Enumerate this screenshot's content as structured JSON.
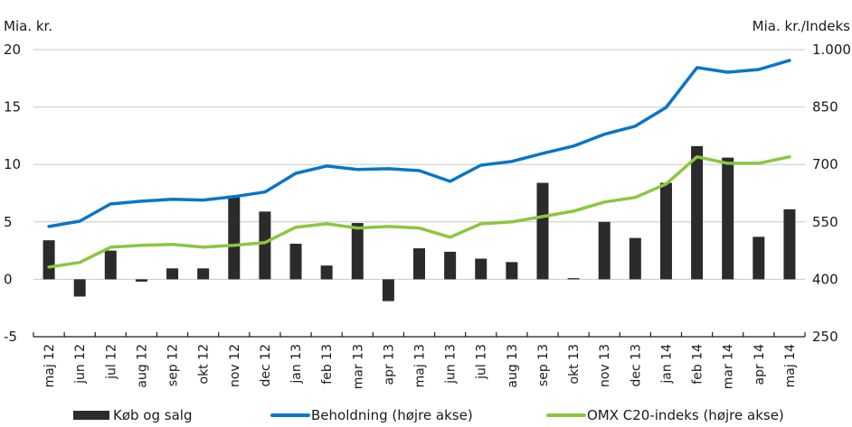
{
  "chart_data": {
    "type": "bar+line",
    "left_axis_title": "Mia. kr.",
    "right_axis_title": "Mia. kr./Indeks",
    "left_ylim": [
      -5,
      20
    ],
    "left_ticks": [
      "20",
      "15",
      "10",
      "5",
      "0",
      "-5"
    ],
    "left_tick_values": [
      20,
      15,
      10,
      5,
      0,
      -5
    ],
    "right_ylim": [
      250,
      1000
    ],
    "right_ticks": [
      "1.000",
      "850",
      "700",
      "550",
      "400",
      "250"
    ],
    "right_tick_values": [
      1000,
      850,
      700,
      550,
      400,
      250
    ],
    "grid": true,
    "legend_position": "bottom",
    "categories": [
      "maj 12",
      "jun 12",
      "jul 12",
      "aug 12",
      "sep 12",
      "okt 12",
      "nov 12",
      "dec 12",
      "jan 13",
      "feb 13",
      "mar 13",
      "apr 13",
      "maj 13",
      "jun 13",
      "jul 13",
      "aug 13",
      "sep 13",
      "okt 13",
      "nov 13",
      "dec 13",
      "jan 14",
      "feb 14",
      "mar 14",
      "apr 14",
      "maj 14"
    ],
    "series": [
      {
        "name": "Køb og salg",
        "type": "bar",
        "axis": "left",
        "color": "#2b2b2b",
        "values": [
          3.4,
          -1.5,
          2.5,
          -0.2,
          0.95,
          0.95,
          7.3,
          5.9,
          3.1,
          1.2,
          4.9,
          -1.9,
          2.7,
          2.4,
          1.8,
          1.5,
          8.4,
          0.1,
          5.0,
          3.6,
          8.4,
          11.6,
          10.6,
          3.7,
          6.1
        ]
      },
      {
        "name": "Beholdning (højre akse)",
        "type": "line",
        "axis": "right",
        "color": "#0a75c8",
        "values": [
          538,
          552,
          597,
          604,
          609,
          607,
          616,
          628,
          677,
          696,
          687,
          689,
          684,
          656,
          698,
          708,
          729,
          748,
          779,
          800,
          849,
          953,
          941,
          948,
          972
        ]
      },
      {
        "name": "OMX C20-indeks (højre akse)",
        "type": "line",
        "axis": "right",
        "color": "#8cc63f",
        "values": [
          432,
          444,
          484,
          489,
          491,
          484,
          489,
          496,
          536,
          545,
          534,
          538,
          534,
          510,
          545,
          550,
          564,
          578,
          602,
          614,
          649,
          720,
          703,
          703,
          720
        ]
      }
    ]
  }
}
